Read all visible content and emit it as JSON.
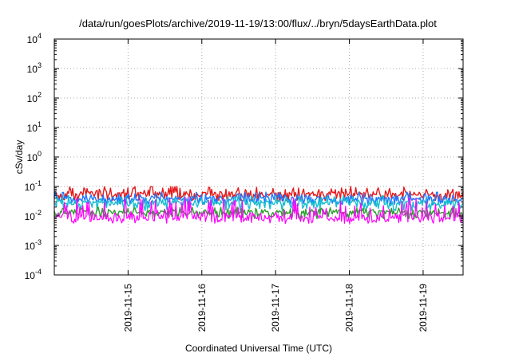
{
  "chart_data": {
    "type": "line",
    "title": "/data/run/goesPlots/archive/2019-11-19/13:00/flux/../bryn/5daysEarthData.plot",
    "xlabel": "Coordinated Universal Time (UTC)",
    "ylabel": "cSv/day",
    "yscale": "log",
    "ylim": [
      0.0001,
      10000
    ],
    "y_ticks": [
      {
        "base": "10",
        "exp": "-4",
        "value": 0.0001
      },
      {
        "base": "10",
        "exp": "-3",
        "value": 0.001
      },
      {
        "base": "10",
        "exp": "-2",
        "value": 0.01
      },
      {
        "base": "10",
        "exp": "-1",
        "value": 0.1
      },
      {
        "base": "10",
        "exp": "0",
        "value": 1
      },
      {
        "base": "10",
        "exp": "1",
        "value": 10
      },
      {
        "base": "10",
        "exp": "2",
        "value": 100
      },
      {
        "base": "10",
        "exp": "3",
        "value": 1000
      },
      {
        "base": "10",
        "exp": "4",
        "value": 10000
      }
    ],
    "xlim": [
      "2019-11-14T00:00",
      "2019-11-19T13:00"
    ],
    "x_ticks": [
      "2019-11-15",
      "2019-11-16",
      "2019-11-17",
      "2019-11-18",
      "2019-11-19"
    ],
    "grid": true,
    "series": [
      {
        "color": "#e41a1c",
        "level": 0.055,
        "low": 0.032,
        "high": 0.1
      },
      {
        "color": "#1f77ff",
        "level": 0.038,
        "low": 0.022,
        "high": 0.065
      },
      {
        "color": "#17becf",
        "level": 0.028,
        "low": 0.015,
        "high": 0.05
      },
      {
        "color": "#2ca02c",
        "level": 0.013,
        "low": 0.008,
        "high": 0.02
      },
      {
        "color": "#ff00ff",
        "level": 0.009,
        "low": 0.0055,
        "high": 0.045
      }
    ]
  }
}
